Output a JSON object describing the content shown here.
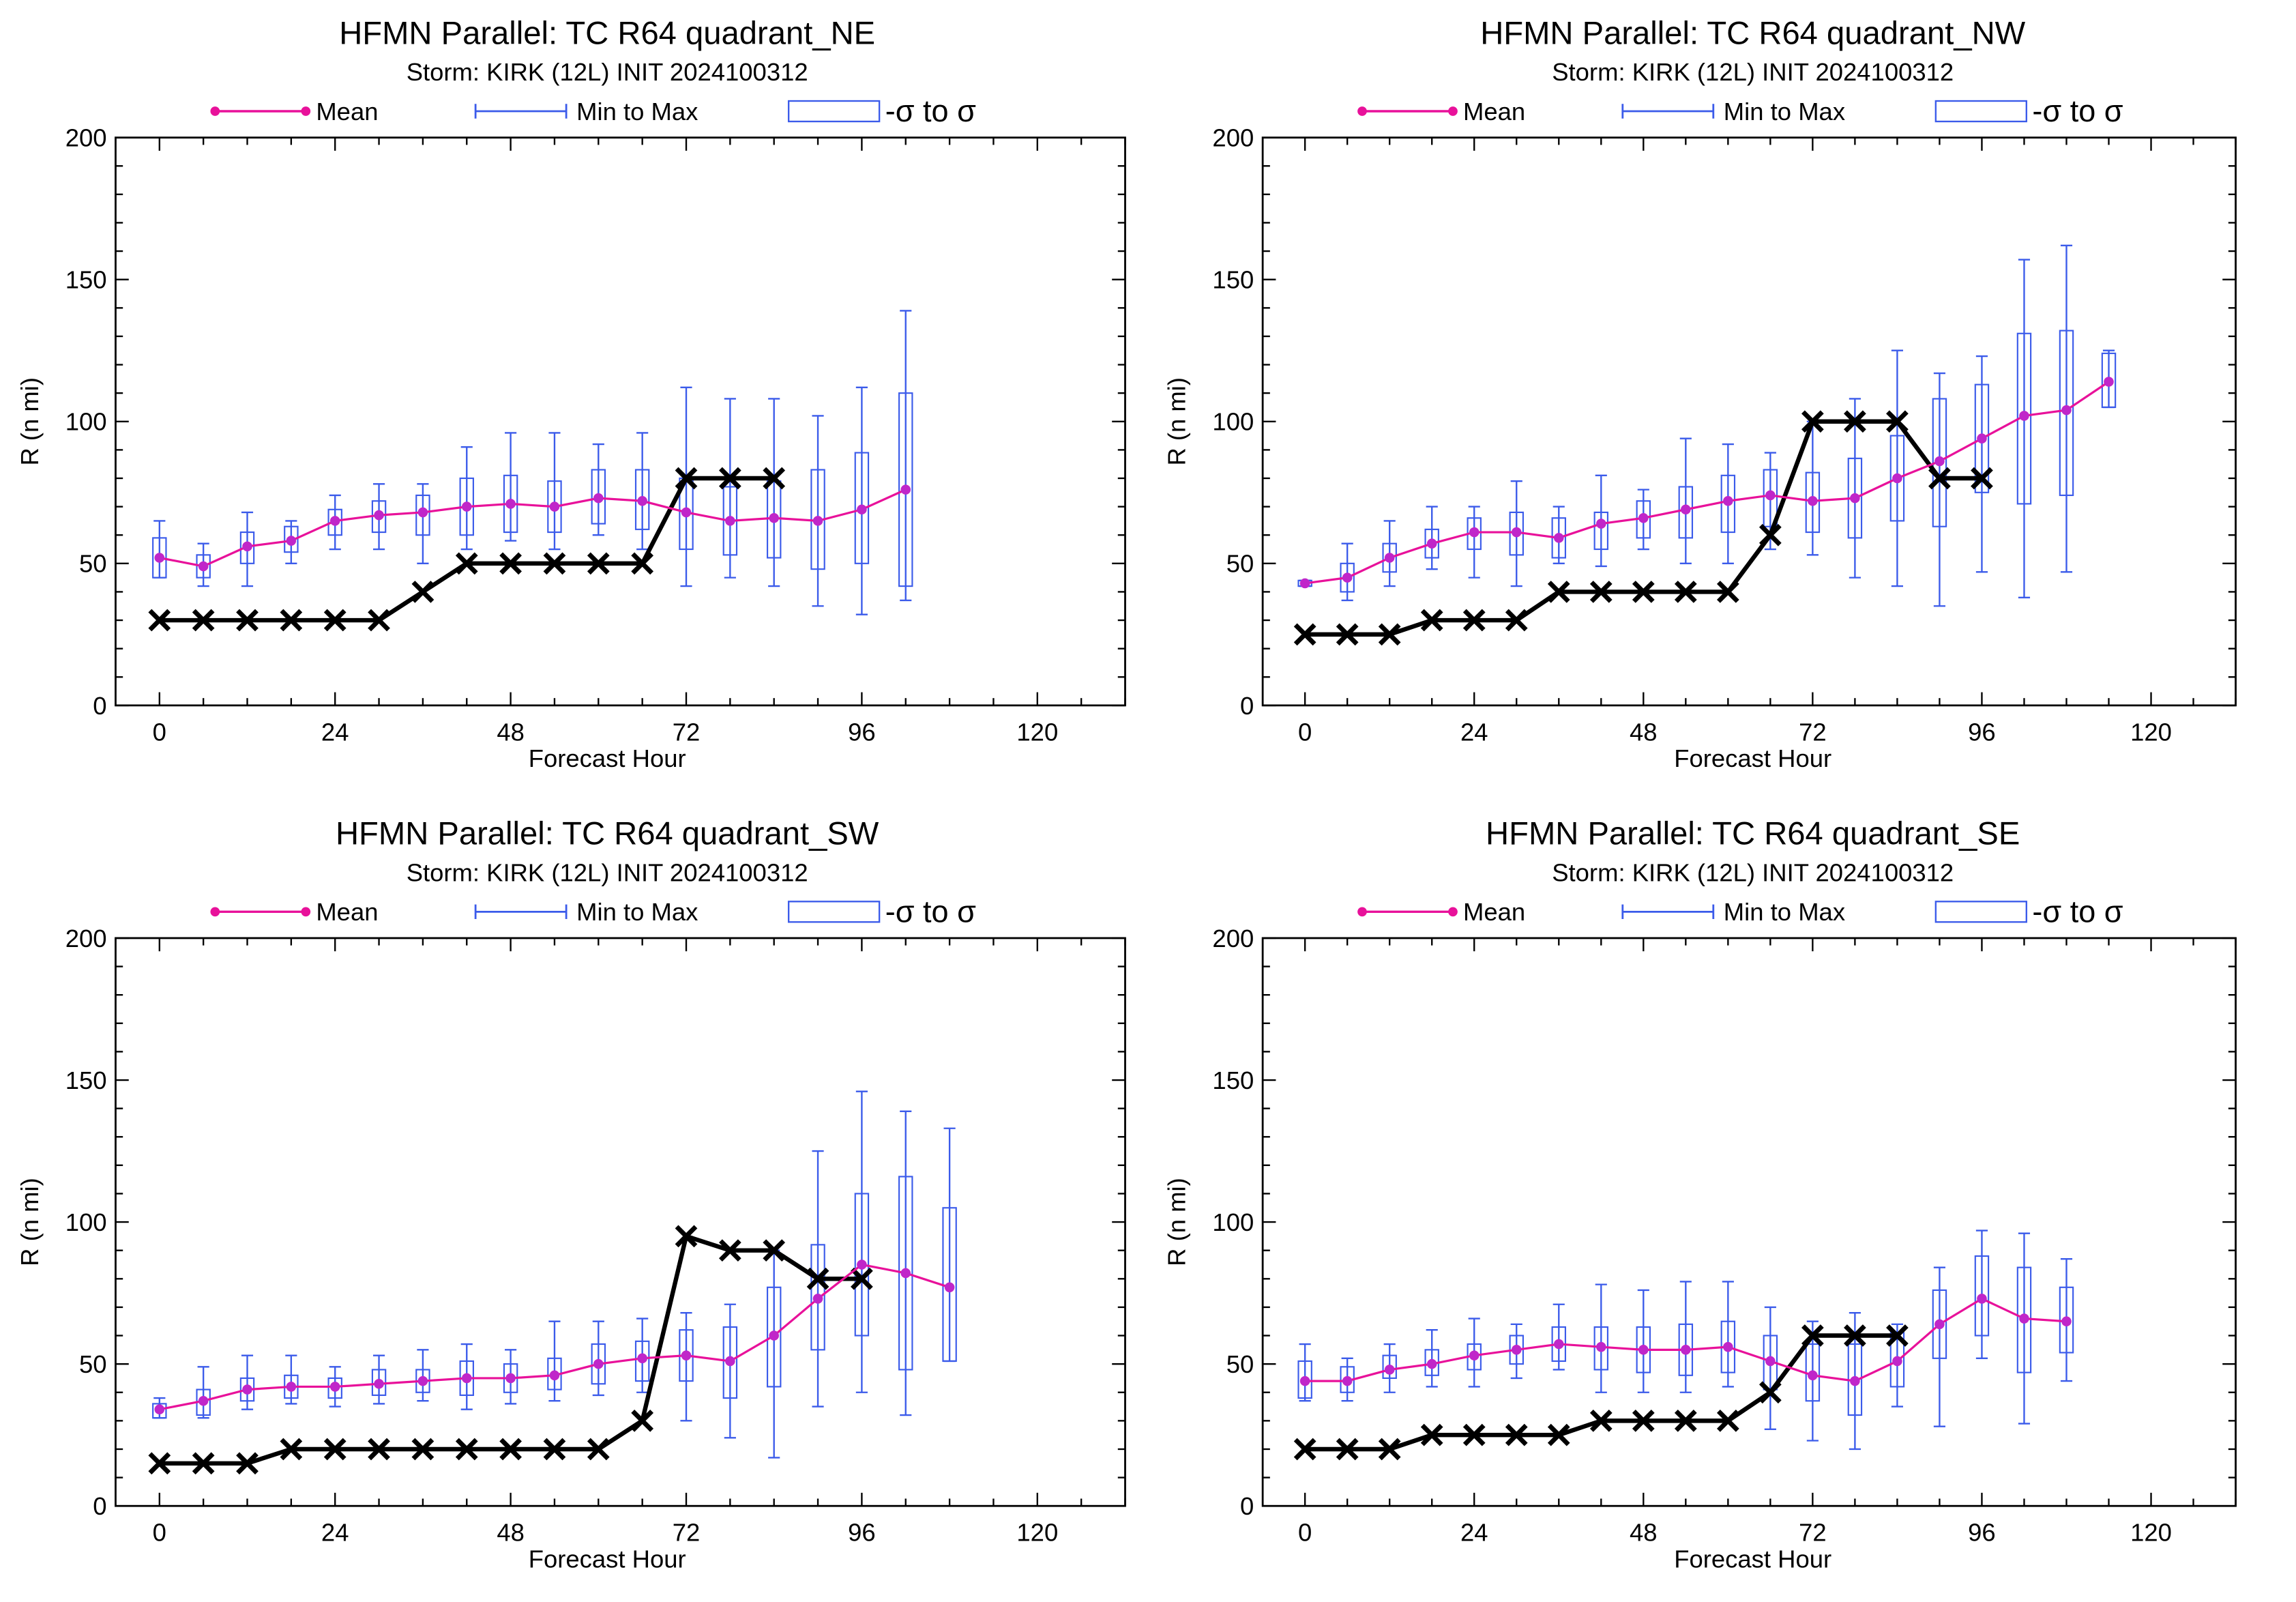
{
  "colors": {
    "mean": "#e8119a",
    "mean_dot": "#c026c9",
    "box": "#3b5bea",
    "observed": "#000000"
  },
  "legend": {
    "mean": "Mean",
    "minmax": "Min to Max",
    "sigma": "-σ to σ"
  },
  "chart_data": [
    {
      "type": "box-line",
      "title": "HFMN Parallel: TC  R64 quadrant_NE",
      "subtitle": "Storm: KIRK (12L) INIT 2024100312",
      "xlabel": "Forecast Hour",
      "ylabel": "R (n mi)",
      "xlim": [
        -6,
        132
      ],
      "ylim": [
        0,
        200
      ],
      "xticks": [
        0,
        24,
        48,
        72,
        96,
        120
      ],
      "yticks": [
        0,
        50,
        100,
        150,
        200
      ],
      "x": [
        0,
        6,
        12,
        18,
        24,
        30,
        36,
        42,
        48,
        54,
        60,
        66,
        72,
        78,
        84,
        90,
        96,
        102
      ],
      "mean": [
        52,
        49,
        56,
        58,
        65,
        67,
        68,
        70,
        71,
        70,
        73,
        72,
        68,
        65,
        66,
        65,
        69,
        76
      ],
      "min": [
        45,
        42,
        42,
        50,
        55,
        55,
        50,
        55,
        58,
        55,
        60,
        55,
        42,
        45,
        42,
        35,
        32,
        37
      ],
      "max": [
        65,
        57,
        68,
        65,
        74,
        78,
        78,
        91,
        96,
        96,
        92,
        96,
        112,
        108,
        108,
        102,
        112,
        139
      ],
      "box_low": [
        45,
        45,
        50,
        54,
        60,
        61,
        60,
        60,
        61,
        61,
        64,
        62,
        55,
        53,
        52,
        48,
        50,
        42
      ],
      "box_high": [
        59,
        53,
        61,
        63,
        69,
        72,
        74,
        80,
        81,
        79,
        83,
        83,
        80,
        77,
        79,
        83,
        89,
        110
      ],
      "observed_x": [
        0,
        6,
        12,
        18,
        24,
        30,
        36,
        42,
        48,
        54,
        60,
        66,
        72,
        78,
        84
      ],
      "observed_y": [
        30,
        30,
        30,
        30,
        30,
        30,
        40,
        50,
        50,
        50,
        50,
        50,
        80,
        80,
        80
      ]
    },
    {
      "type": "box-line",
      "title": "HFMN Parallel: TC  R64 quadrant_NW",
      "subtitle": "Storm: KIRK (12L) INIT 2024100312",
      "xlabel": "Forecast Hour",
      "ylabel": "R (n mi)",
      "xlim": [
        -6,
        132
      ],
      "ylim": [
        0,
        200
      ],
      "xticks": [
        0,
        24,
        48,
        72,
        96,
        120
      ],
      "yticks": [
        0,
        50,
        100,
        150,
        200
      ],
      "x": [
        0,
        6,
        12,
        18,
        24,
        30,
        36,
        42,
        48,
        54,
        60,
        66,
        72,
        78,
        84,
        90,
        96,
        102,
        108,
        114
      ],
      "mean": [
        43,
        45,
        52,
        57,
        61,
        61,
        59,
        64,
        66,
        69,
        72,
        74,
        72,
        73,
        80,
        86,
        94,
        102,
        104,
        114
      ],
      "min": [
        42,
        37,
        42,
        48,
        45,
        42,
        50,
        49,
        55,
        50,
        50,
        55,
        53,
        45,
        42,
        35,
        47,
        38,
        47,
        105
      ],
      "max": [
        44,
        57,
        65,
        70,
        70,
        79,
        70,
        81,
        76,
        94,
        92,
        89,
        100,
        108,
        125,
        117,
        123,
        157,
        162,
        125
      ],
      "box_low": [
        42,
        40,
        47,
        52,
        55,
        53,
        52,
        55,
        59,
        59,
        61,
        63,
        61,
        59,
        65,
        63,
        75,
        71,
        74,
        105
      ],
      "box_high": [
        44,
        50,
        57,
        62,
        66,
        68,
        66,
        68,
        72,
        77,
        81,
        83,
        82,
        87,
        95,
        108,
        113,
        131,
        132,
        124
      ],
      "observed_x": [
        0,
        6,
        12,
        18,
        24,
        30,
        36,
        42,
        48,
        54,
        60,
        66,
        72,
        78,
        84,
        90,
        96
      ],
      "observed_y": [
        25,
        25,
        25,
        30,
        30,
        30,
        40,
        40,
        40,
        40,
        40,
        60,
        100,
        100,
        100,
        80,
        80
      ]
    },
    {
      "type": "box-line",
      "title": "HFMN Parallel: TC  R64 quadrant_SW",
      "subtitle": "Storm: KIRK (12L) INIT 2024100312",
      "xlabel": "Forecast Hour",
      "ylabel": "R (n mi)",
      "xlim": [
        -6,
        132
      ],
      "ylim": [
        0,
        200
      ],
      "xticks": [
        0,
        24,
        48,
        72,
        96,
        120
      ],
      "yticks": [
        0,
        50,
        100,
        150,
        200
      ],
      "x": [
        0,
        6,
        12,
        18,
        24,
        30,
        36,
        42,
        48,
        54,
        60,
        66,
        72,
        78,
        84,
        90,
        96,
        102,
        108
      ],
      "mean": [
        34,
        37,
        41,
        42,
        42,
        43,
        44,
        45,
        45,
        46,
        50,
        52,
        53,
        51,
        60,
        73,
        85,
        82,
        77
      ],
      "min": [
        31,
        31,
        34,
        36,
        35,
        36,
        37,
        34,
        36,
        37,
        39,
        40,
        30,
        24,
        17,
        35,
        40,
        32,
        51
      ],
      "max": [
        38,
        49,
        53,
        53,
        49,
        53,
        55,
        57,
        55,
        65,
        65,
        66,
        68,
        71,
        90,
        125,
        146,
        139,
        133
      ],
      "box_low": [
        31,
        32,
        37,
        38,
        38,
        39,
        40,
        39,
        40,
        41,
        43,
        44,
        44,
        38,
        42,
        55,
        60,
        48,
        51
      ],
      "box_high": [
        36,
        41,
        45,
        46,
        45,
        48,
        48,
        51,
        50,
        52,
        57,
        58,
        62,
        63,
        77,
        92,
        110,
        116,
        105
      ],
      "observed_x": [
        0,
        6,
        12,
        18,
        24,
        30,
        36,
        42,
        48,
        54,
        60,
        66,
        72,
        78,
        84,
        90,
        96
      ],
      "observed_y": [
        15,
        15,
        15,
        20,
        20,
        20,
        20,
        20,
        20,
        20,
        20,
        30,
        95,
        90,
        90,
        80,
        80
      ]
    },
    {
      "type": "box-line",
      "title": "HFMN Parallel: TC  R64 quadrant_SE",
      "subtitle": "Storm: KIRK (12L) INIT 2024100312",
      "xlabel": "Forecast Hour",
      "ylabel": "R (n mi)",
      "xlim": [
        -6,
        132
      ],
      "ylim": [
        0,
        200
      ],
      "xticks": [
        0,
        24,
        48,
        72,
        96,
        120
      ],
      "yticks": [
        0,
        50,
        100,
        150,
        200
      ],
      "x": [
        0,
        6,
        12,
        18,
        24,
        30,
        36,
        42,
        48,
        54,
        60,
        66,
        72,
        78,
        84,
        90,
        96,
        102,
        108
      ],
      "mean": [
        44,
        44,
        48,
        50,
        53,
        55,
        57,
        56,
        55,
        55,
        56,
        51,
        46,
        44,
        51,
        64,
        73,
        66,
        65
      ],
      "min": [
        37,
        37,
        40,
        42,
        42,
        45,
        48,
        40,
        40,
        40,
        42,
        27,
        23,
        20,
        35,
        28,
        52,
        29,
        44
      ],
      "max": [
        57,
        52,
        57,
        62,
        66,
        64,
        71,
        78,
        76,
        79,
        79,
        70,
        65,
        68,
        64,
        84,
        97,
        96,
        87
      ],
      "box_low": [
        38,
        40,
        45,
        46,
        48,
        50,
        51,
        48,
        47,
        46,
        47,
        41,
        37,
        32,
        42,
        52,
        60,
        47,
        54
      ],
      "box_high": [
        51,
        49,
        53,
        55,
        57,
        60,
        63,
        63,
        63,
        64,
        65,
        60,
        57,
        57,
        61,
        76,
        88,
        84,
        77
      ],
      "observed_x": [
        0,
        6,
        12,
        18,
        24,
        30,
        36,
        42,
        48,
        54,
        60,
        66,
        72,
        78,
        84
      ],
      "observed_y": [
        20,
        20,
        20,
        25,
        25,
        25,
        25,
        30,
        30,
        30,
        30,
        40,
        60,
        60,
        60
      ]
    }
  ]
}
